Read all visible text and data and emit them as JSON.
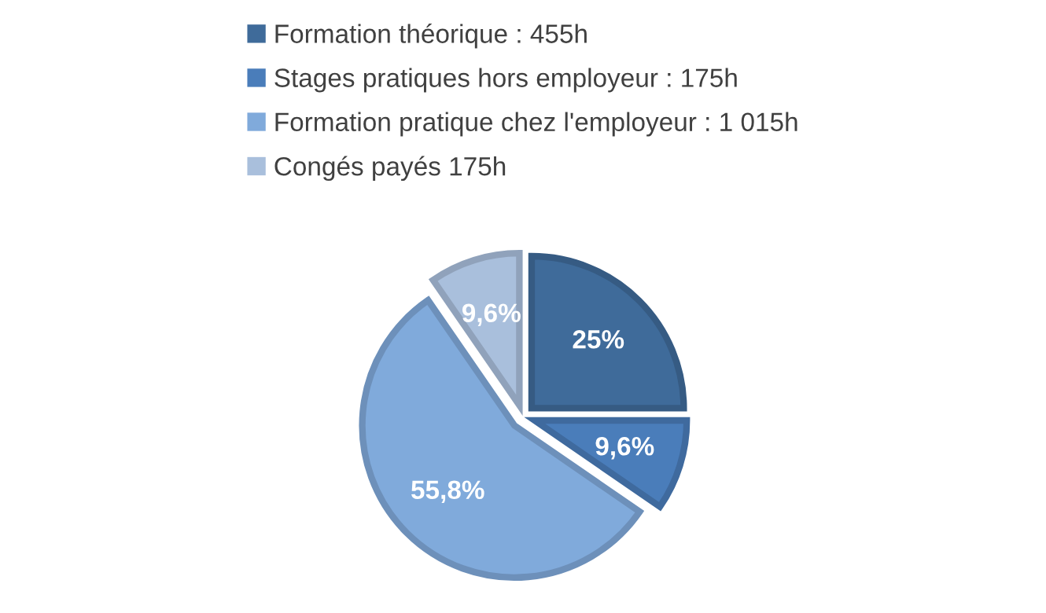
{
  "chart_data": {
    "type": "pie",
    "categories": [
      "Formation théorique : 455h",
      "Stages pratiques hors employeur : 175h",
      "Formation pratique chez l'employeur : 1 015h",
      "Congés payés 175h"
    ],
    "values": [
      25,
      9.6,
      55.8,
      9.6
    ],
    "value_labels": [
      "25%",
      "9,6%",
      "55,8%",
      "9,6%"
    ],
    "colors": [
      "#3f6b9a",
      "#4a7dba",
      "#80aadb",
      "#a9bfdc"
    ],
    "legend": "top"
  }
}
